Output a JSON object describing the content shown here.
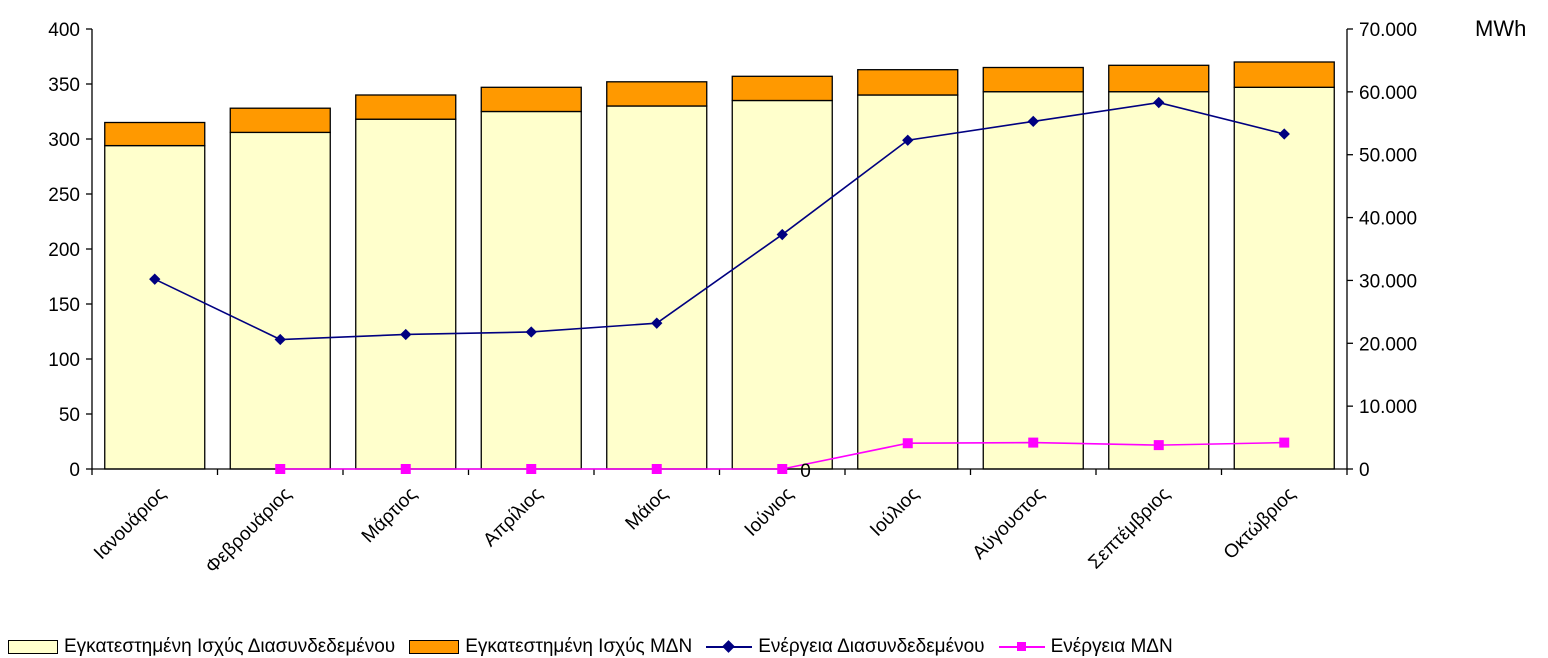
{
  "chart_data": {
    "type": "bar",
    "categories": [
      "Ιανουάριος",
      "Φεβρουάριος",
      "Μάρτιος",
      "Απρίλιος",
      "Μάιος",
      "Ιούνιος",
      "Ιούλιος",
      "Αύγουστος",
      "Σεπτέμβριος",
      "Οκτώβριος"
    ],
    "bar_series": [
      {
        "name": "Εγκατεστημένη Ισχύς Διασυνδεδεμένου",
        "color": "#ffffcc",
        "values": [
          294,
          306,
          318,
          325,
          330,
          335,
          340,
          343,
          343,
          347
        ]
      },
      {
        "name": "Εγκατεστημένη Ισχύς ΜΔΝ",
        "color": "#ff9900",
        "values": [
          21,
          22,
          22,
          22,
          22,
          22,
          23,
          22,
          24,
          23
        ]
      }
    ],
    "line_series": [
      {
        "name": "Ενέργεια Διασυνδεδεμένου",
        "color": "#000080",
        "marker": "diamond",
        "values": [
          30200,
          20600,
          21400,
          21800,
          23200,
          37300,
          52300,
          55300,
          58300,
          53300
        ]
      },
      {
        "name": "Ενέργεια ΜΔΝ",
        "color": "#ff00ff",
        "marker": "square",
        "values": [
          null,
          0,
          0,
          0,
          0,
          0,
          4100,
          4200,
          3800,
          4200
        ]
      }
    ],
    "annotations": [
      {
        "text": "0",
        "category": "Ιούνιος"
      }
    ],
    "left_axis": {
      "ylim": [
        0,
        400
      ],
      "ticks": [
        0,
        50,
        100,
        150,
        200,
        250,
        300,
        350,
        400
      ]
    },
    "right_axis": {
      "ylim": [
        0,
        70000
      ],
      "ticks": [
        "0",
        "10.000",
        "20.000",
        "30.000",
        "40.000",
        "50.000",
        "60.000",
        "70.000"
      ],
      "unit": "MWh"
    },
    "grid": false,
    "legend": "bottom"
  }
}
